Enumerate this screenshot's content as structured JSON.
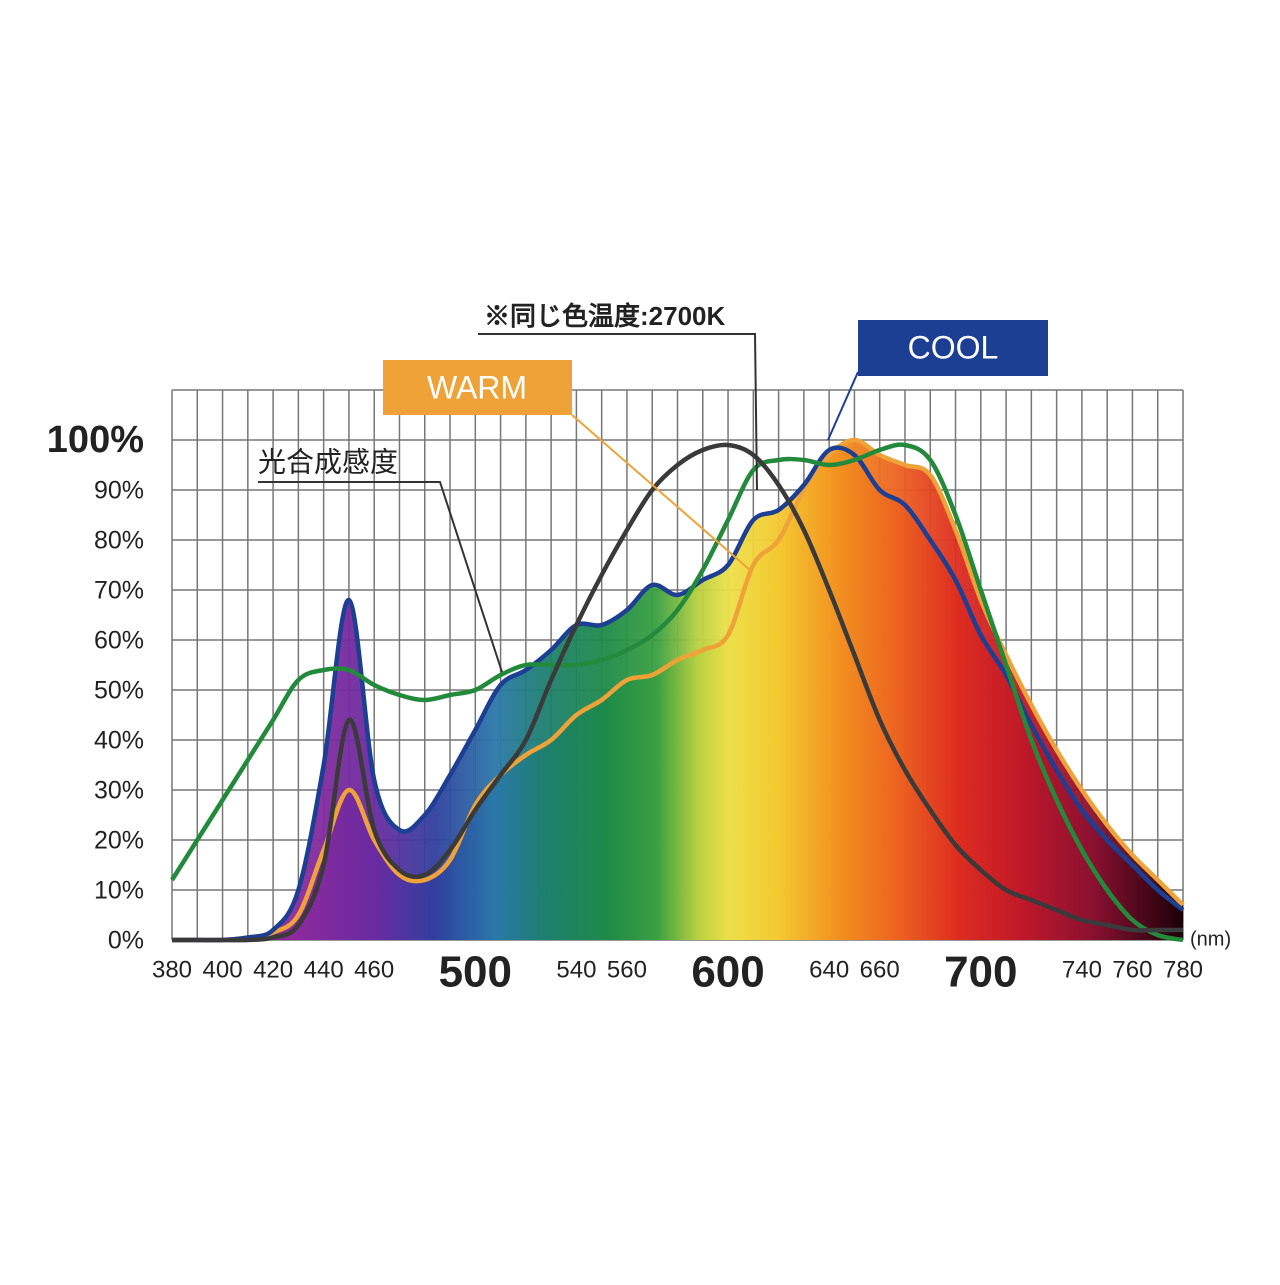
{
  "chart_data": {
    "type": "line",
    "x": [
      380,
      390,
      400,
      410,
      420,
      430,
      440,
      450,
      460,
      470,
      480,
      490,
      500,
      510,
      520,
      530,
      540,
      550,
      560,
      570,
      580,
      590,
      600,
      610,
      620,
      630,
      640,
      650,
      660,
      670,
      680,
      690,
      700,
      710,
      720,
      730,
      740,
      750,
      760,
      770,
      780
    ],
    "series": [
      {
        "name": "WARM",
        "color": "#eea238",
        "area": true,
        "values": [
          0,
          0,
          0,
          0.5,
          1.5,
          5,
          18,
          30,
          20,
          13,
          12,
          16,
          27,
          33,
          37,
          40,
          45,
          48,
          52,
          53,
          56,
          58,
          61,
          75,
          80,
          90,
          97,
          100,
          97,
          95,
          93,
          82,
          68,
          57,
          47,
          38,
          30,
          23,
          17,
          12,
          7
        ]
      },
      {
        "name": "COOL",
        "color": "#1c3f94",
        "area": true,
        "values": [
          0,
          0,
          0,
          0.5,
          2,
          10,
          35,
          68,
          32,
          22,
          25,
          33,
          42,
          51,
          54,
          58,
          63,
          63,
          66,
          71,
          69,
          72,
          75,
          84,
          86,
          91,
          98,
          97,
          90,
          87,
          80,
          72,
          61,
          53,
          43,
          34,
          26,
          20,
          15,
          10,
          6
        ]
      },
      {
        "name": "光合成感度",
        "color": "#238a3c",
        "values": [
          12,
          20,
          28,
          36,
          44,
          52,
          54,
          54,
          51,
          49,
          48,
          49,
          50,
          53,
          55,
          55,
          55,
          56,
          58,
          61,
          66,
          74,
          84,
          94,
          96,
          96,
          95,
          96,
          98,
          99,
          96,
          85,
          70,
          55,
          40,
          28,
          18,
          10,
          4,
          1,
          0
        ]
      },
      {
        "name": "※同じ色温度:2700K",
        "color": "#3a3a3a",
        "values": [
          0,
          0,
          0,
          0,
          0.5,
          3,
          15,
          44,
          22,
          14,
          13,
          18,
          26,
          33,
          40,
          52,
          63,
          73,
          82,
          90,
          95,
          98,
          99,
          97,
          91,
          82,
          70,
          57,
          44,
          34,
          26,
          19,
          14,
          10,
          8,
          6,
          4,
          3,
          2,
          2,
          2
        ]
      }
    ],
    "xlabel": "(nm)",
    "xlim": [
      380,
      780
    ],
    "xticks": [
      380,
      400,
      420,
      440,
      460,
      540,
      560,
      640,
      660,
      740,
      760,
      780
    ],
    "xticks_major": [
      500,
      600,
      700
    ],
    "xgrid": [
      380,
      390,
      400,
      410,
      420,
      430,
      440,
      450,
      460,
      470,
      480,
      490,
      500,
      510,
      520,
      530,
      540,
      550,
      560,
      570,
      580,
      590,
      600,
      610,
      620,
      630,
      640,
      650,
      660,
      670,
      680,
      690,
      700,
      710,
      720,
      730,
      740,
      750,
      760,
      770,
      780
    ],
    "ylim": [
      0,
      110
    ],
    "yticks": [
      {
        "value": 0,
        "label": "0%"
      },
      {
        "value": 10,
        "label": "10%"
      },
      {
        "value": 20,
        "label": "20%"
      },
      {
        "value": 30,
        "label": "30%"
      },
      {
        "value": 40,
        "label": "40%"
      },
      {
        "value": 50,
        "label": "50%"
      },
      {
        "value": 60,
        "label": "60%"
      },
      {
        "value": 70,
        "label": "70%"
      },
      {
        "value": 80,
        "label": "80%"
      },
      {
        "value": 90,
        "label": "90%"
      },
      {
        "value": 100,
        "label": "100%"
      }
    ],
    "ygrid": [
      0,
      10,
      20,
      30,
      40,
      50,
      60,
      70,
      80,
      90,
      100,
      110
    ],
    "grid": true
  }
}
